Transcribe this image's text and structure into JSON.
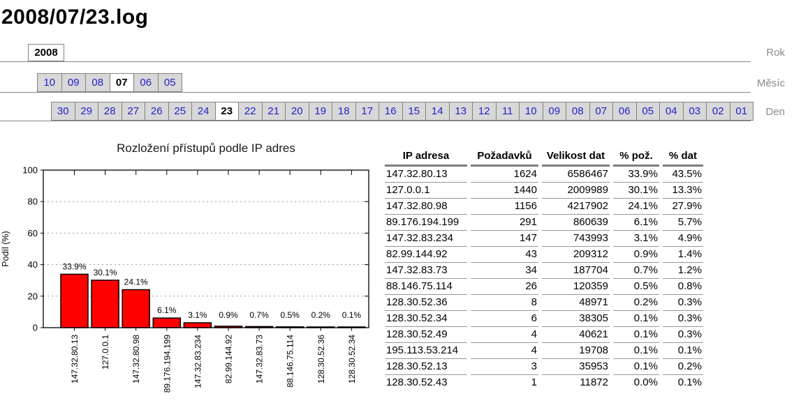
{
  "page": {
    "title": "2008/07/23.log"
  },
  "colors": {
    "link_blue": "#2222cc",
    "tab_gray": "#d8d8d8",
    "line_gray": "#878787",
    "label_gray": "#8a8a8a",
    "bar_red": "#ff0000"
  },
  "nav": {
    "year": {
      "id": "year",
      "label": "Rok",
      "tabs": [
        {
          "text": "2008",
          "selected": true
        }
      ]
    },
    "month": {
      "id": "month",
      "label": "Měsíc",
      "tabs": [
        {
          "text": "10"
        },
        {
          "text": "09"
        },
        {
          "text": "08"
        },
        {
          "text": "07",
          "selected": true
        },
        {
          "text": "06"
        },
        {
          "text": "05"
        }
      ]
    },
    "day": {
      "id": "day",
      "label": "Den",
      "tabs": [
        {
          "text": "30"
        },
        {
          "text": "29"
        },
        {
          "text": "28"
        },
        {
          "text": "27"
        },
        {
          "text": "26"
        },
        {
          "text": "25"
        },
        {
          "text": "24"
        },
        {
          "text": "23",
          "selected": true
        },
        {
          "text": "22"
        },
        {
          "text": "21"
        },
        {
          "text": "20"
        },
        {
          "text": "19"
        },
        {
          "text": "18"
        },
        {
          "text": "17"
        },
        {
          "text": "16"
        },
        {
          "text": "15"
        },
        {
          "text": "14"
        },
        {
          "text": "13"
        },
        {
          "text": "12"
        },
        {
          "text": "11"
        },
        {
          "text": "10"
        },
        {
          "text": "09"
        },
        {
          "text": "08"
        },
        {
          "text": "07"
        },
        {
          "text": "06"
        },
        {
          "text": "05"
        },
        {
          "text": "04"
        },
        {
          "text": "03"
        },
        {
          "text": "02"
        },
        {
          "text": "01"
        }
      ]
    }
  },
  "chart_data": {
    "type": "bar",
    "title": "Rozložení přístupů podle IP adres",
    "xlabel": "",
    "ylabel": "Podíl (%)",
    "ylim": [
      0,
      100
    ],
    "yticks": [
      0,
      20,
      40,
      60,
      80,
      100
    ],
    "grid": true,
    "legend": "none",
    "bar_color": "#ff0000",
    "categories": [
      "147.32.80.13",
      "127.0.0.1",
      "147.32.80.98",
      "89.176.194.199",
      "147.32.83.234",
      "82.99.144.92",
      "147.32.83.73",
      "88.146.75.114",
      "128.30.52.36",
      "128.30.52.34"
    ],
    "values": [
      33.9,
      30.1,
      24.1,
      6.1,
      3.1,
      0.9,
      0.7,
      0.5,
      0.2,
      0.1
    ],
    "bar_labels": [
      "33.9%",
      "30.1%",
      "24.1%",
      "6.1%",
      "3.1%",
      "0.9%",
      "0.7%",
      "0.5%",
      "0.2%",
      "0.1%"
    ]
  },
  "table": {
    "headers": [
      "IP adresa",
      "Požadavků",
      "Velikost dat",
      "% pož.",
      "% dat"
    ],
    "rows": [
      [
        "147.32.80.13",
        "1624",
        "6586467",
        "33.9%",
        "43.5%"
      ],
      [
        "127.0.0.1",
        "1440",
        "2009989",
        "30.1%",
        "13.3%"
      ],
      [
        "147.32.80.98",
        "1156",
        "4217902",
        "24.1%",
        "27.9%"
      ],
      [
        "89.176.194.199",
        "291",
        "860639",
        "6.1%",
        "5.7%"
      ],
      [
        "147.32.83.234",
        "147",
        "743993",
        "3.1%",
        "4.9%"
      ],
      [
        "82.99.144.92",
        "43",
        "209312",
        "0.9%",
        "1.4%"
      ],
      [
        "147.32.83.73",
        "34",
        "187704",
        "0.7%",
        "1.2%"
      ],
      [
        "88.146.75.114",
        "26",
        "120359",
        "0.5%",
        "0.8%"
      ],
      [
        "128.30.52.36",
        "8",
        "48971",
        "0.2%",
        "0.3%"
      ],
      [
        "128.30.52.34",
        "6",
        "38305",
        "0.1%",
        "0.3%"
      ],
      [
        "128.30.52.49",
        "4",
        "40621",
        "0.1%",
        "0.3%"
      ],
      [
        "195.113.53.214",
        "4",
        "19708",
        "0.1%",
        "0.1%"
      ],
      [
        "128.30.52.13",
        "3",
        "35953",
        "0.1%",
        "0.2%"
      ],
      [
        "128.30.52.43",
        "1",
        "11872",
        "0.0%",
        "0.1%"
      ]
    ]
  }
}
